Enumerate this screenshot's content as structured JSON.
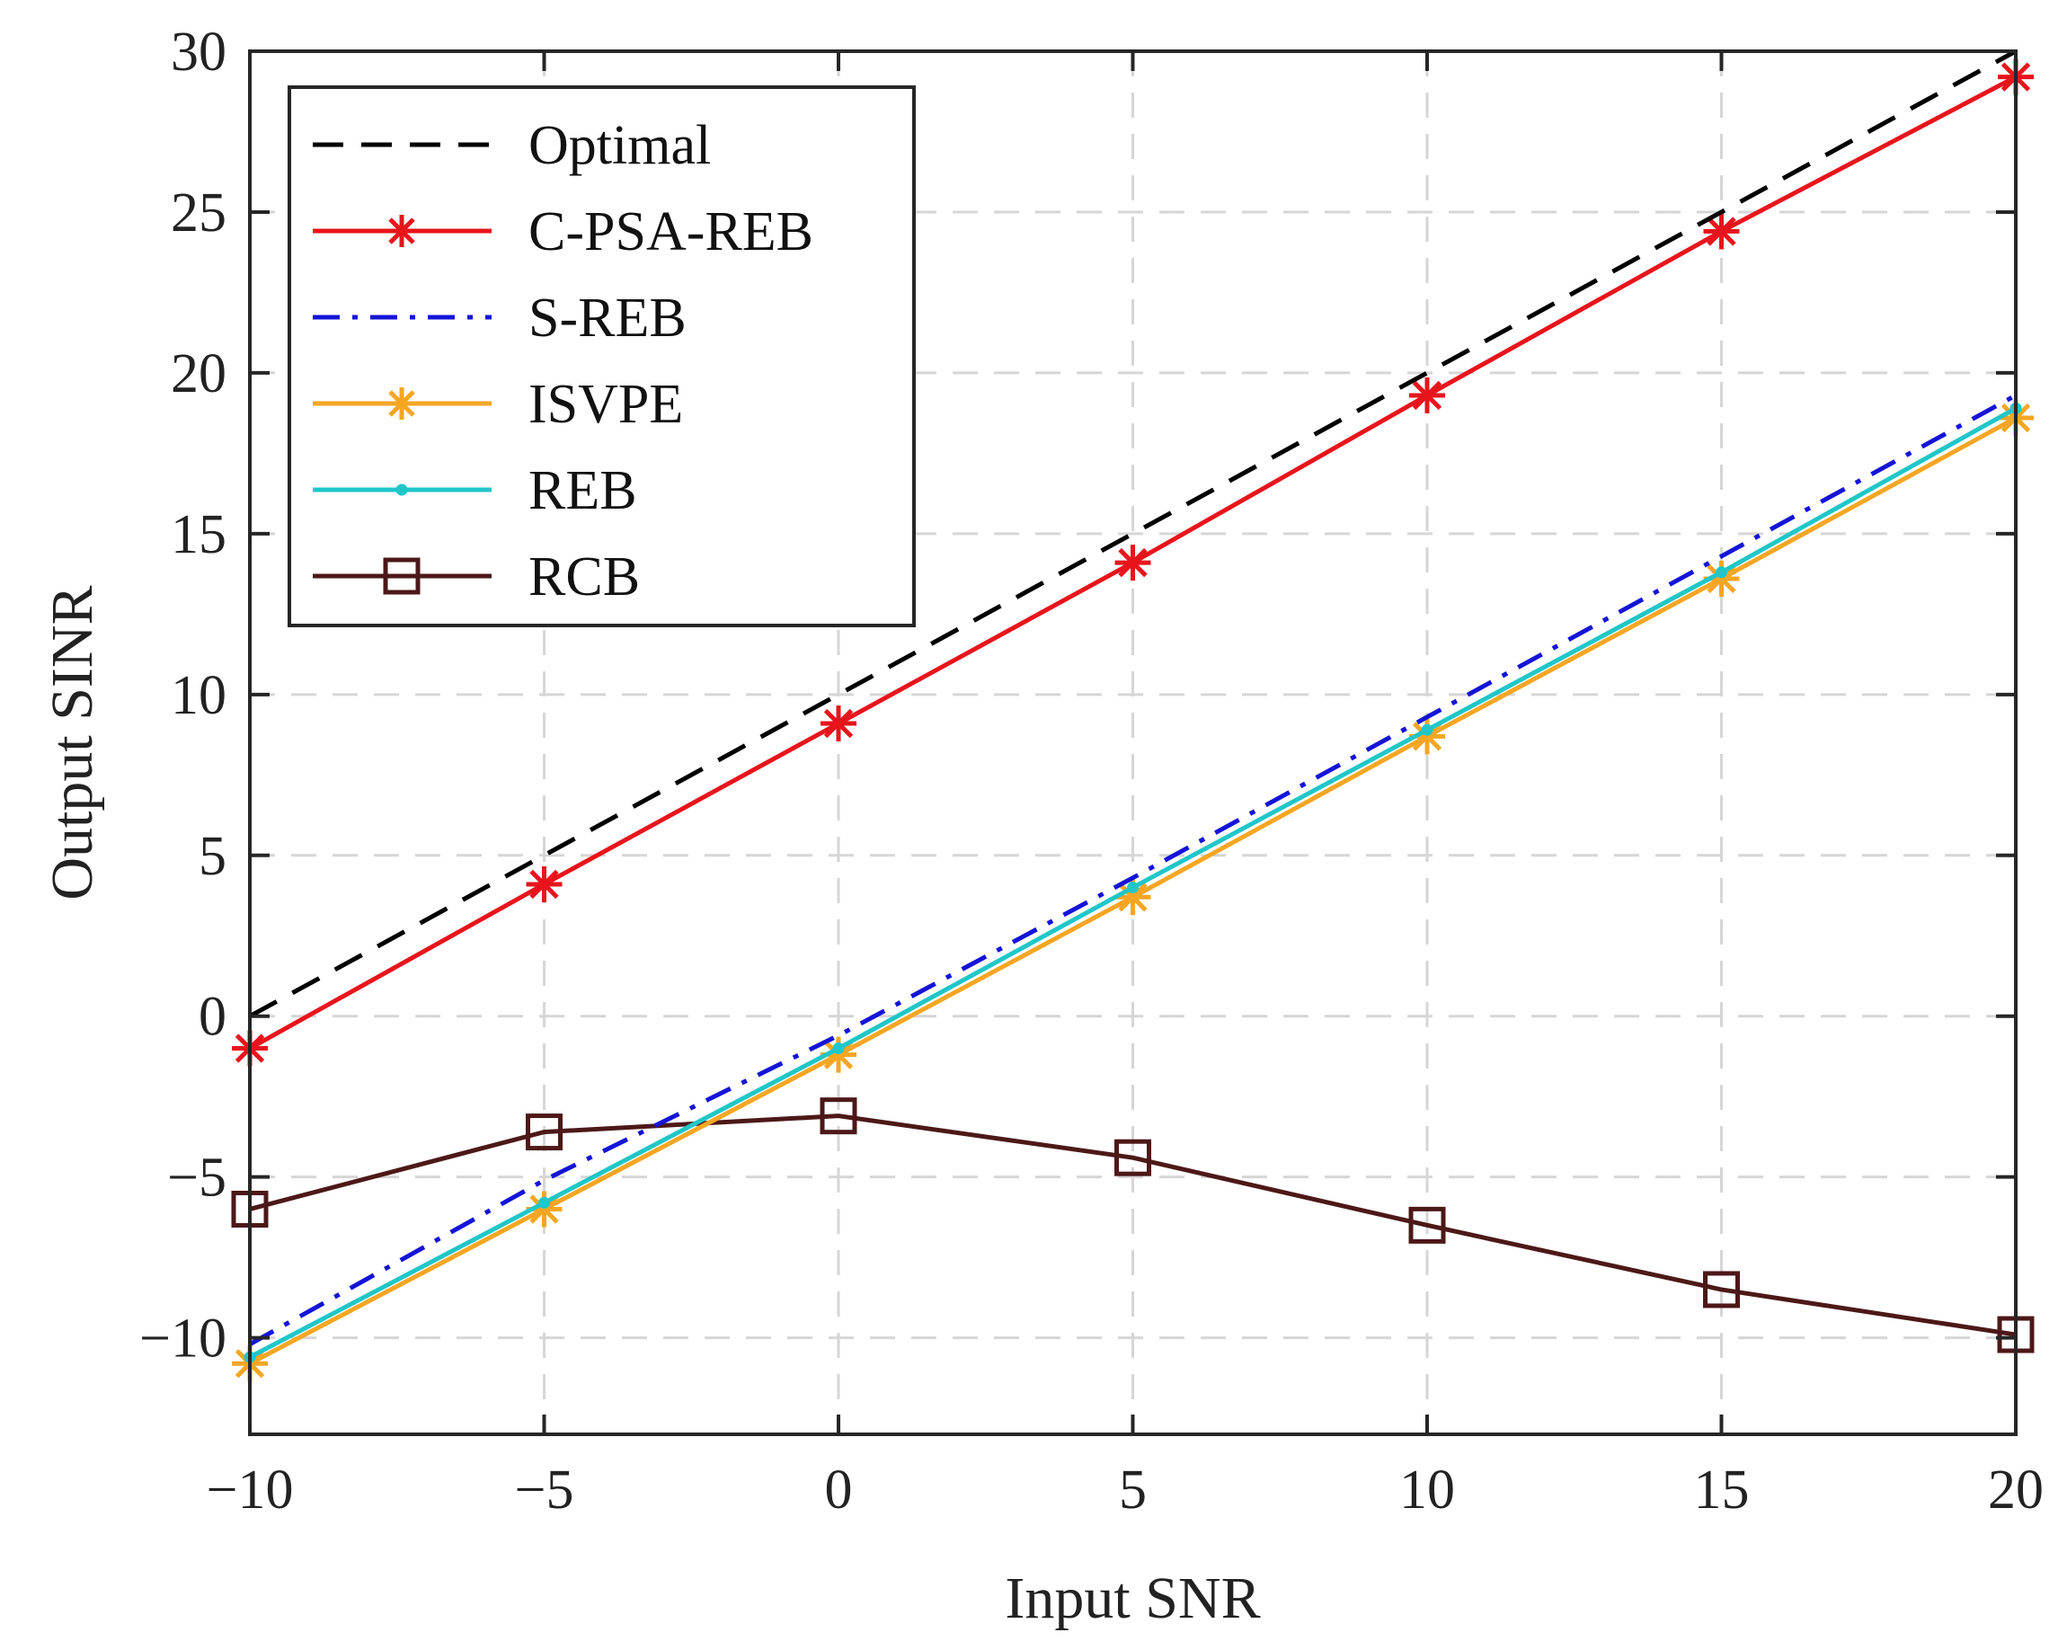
{
  "chart_data": {
    "type": "line",
    "xlabel": "Input SNR",
    "ylabel": "Output SINR",
    "xlim": [
      -10,
      20
    ],
    "ylim": [
      -13,
      30
    ],
    "xticks": [
      -10,
      -5,
      0,
      5,
      10,
      15,
      20
    ],
    "yticks": [
      -10,
      -5,
      0,
      5,
      10,
      15,
      20,
      25,
      30
    ],
    "xtick_labels": [
      "−10",
      "−5",
      "0",
      "5",
      "10",
      "15",
      "20"
    ],
    "ytick_labels": [
      "−10",
      "−5",
      "0",
      "5",
      "10",
      "15",
      "20",
      "25",
      "30"
    ],
    "grid": true,
    "legend_position": "top-left",
    "x": [
      -10,
      -5,
      0,
      5,
      10,
      15,
      20
    ],
    "series": [
      {
        "name": "Optimal",
        "color": "#000000",
        "dash": "dashed",
        "marker": "none",
        "values": [
          0,
          5,
          10,
          15,
          20,
          25,
          30
        ]
      },
      {
        "name": "C-PSA-REB",
        "color": "#e8141c",
        "dash": "solid",
        "marker": "asterisk",
        "values": [
          -1.0,
          4.1,
          9.1,
          14.1,
          19.3,
          24.4,
          29.2
        ]
      },
      {
        "name": "S-REB",
        "color": "#1414d8",
        "dash": "dashdot",
        "marker": "none",
        "values": [
          -10.2,
          -5.1,
          -0.6,
          4.3,
          9.3,
          14.3,
          19.3
        ]
      },
      {
        "name": "ISVPE",
        "color": "#f5a623",
        "dash": "solid",
        "marker": "asterisk",
        "values": [
          -10.8,
          -6.0,
          -1.2,
          3.7,
          8.7,
          13.6,
          18.6
        ]
      },
      {
        "name": "REB",
        "color": "#20c6c8",
        "dash": "solid",
        "marker": "dot",
        "values": [
          -10.6,
          -5.8,
          -1.0,
          4.0,
          8.9,
          13.8,
          18.9
        ]
      },
      {
        "name": "RCB",
        "color": "#4d1818",
        "dash": "solid",
        "marker": "square",
        "values": [
          -6.0,
          -3.6,
          -3.1,
          -4.4,
          -6.5,
          -8.5,
          -9.9
        ]
      }
    ]
  }
}
